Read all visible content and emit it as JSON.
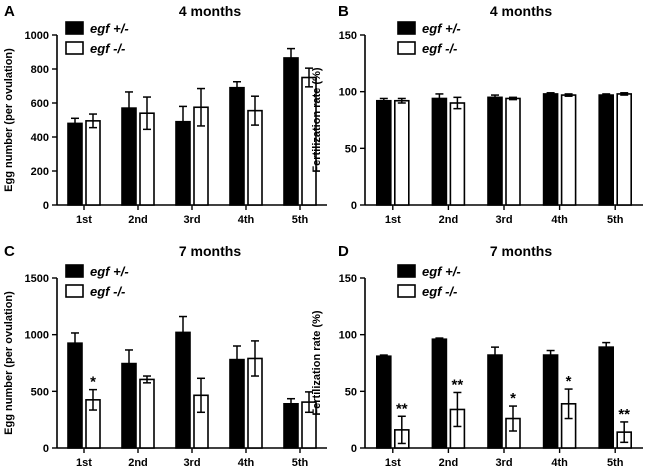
{
  "chart_data": [
    {
      "id": "A",
      "type": "bar",
      "panel_letter": "A",
      "title": "4 months",
      "ylabel": "Egg number (per ovulation)",
      "xlabel": "",
      "categories": [
        "1st",
        "2nd",
        "3rd",
        "4th",
        "5th"
      ],
      "ylim": [
        0,
        1000
      ],
      "yticks": [
        0,
        200,
        400,
        600,
        800,
        1000
      ],
      "series": [
        {
          "name": "egf +/-",
          "color": "#000000",
          "values": [
            480,
            570,
            490,
            690,
            865
          ],
          "errors": [
            30,
            95,
            90,
            35,
            55
          ]
        },
        {
          "name": "egf -/-",
          "color": "#ffffff",
          "values": [
            495,
            540,
            575,
            555,
            750
          ],
          "errors": [
            40,
            95,
            110,
            85,
            55
          ]
        }
      ],
      "significance": [],
      "legend": "top-left",
      "grid": false
    },
    {
      "id": "B",
      "type": "bar",
      "panel_letter": "B",
      "title": "4 months",
      "ylabel": "Fertilization rate (%)",
      "xlabel": "",
      "categories": [
        "1st",
        "2nd",
        "3rd",
        "4th",
        "5th"
      ],
      "ylim": [
        0,
        150
      ],
      "yticks": [
        0,
        50,
        100,
        150
      ],
      "series": [
        {
          "name": "egf +/-",
          "color": "#000000",
          "values": [
            92,
            94,
            95,
            98,
            97
          ],
          "errors": [
            2,
            4,
            2,
            1,
            1
          ]
        },
        {
          "name": "egf -/-",
          "color": "#ffffff",
          "values": [
            92,
            90,
            94,
            97,
            98
          ],
          "errors": [
            2,
            5,
            1,
            1,
            1
          ]
        }
      ],
      "significance": [],
      "legend": "top-left",
      "grid": false
    },
    {
      "id": "C",
      "type": "bar",
      "panel_letter": "C",
      "title": "7 months",
      "ylabel": "Egg number (per ovulation)",
      "xlabel": "",
      "categories": [
        "1st",
        "2nd",
        "3rd",
        "4th",
        "5th"
      ],
      "ylim": [
        0,
        1500
      ],
      "yticks": [
        0,
        500,
        1000,
        1500
      ],
      "series": [
        {
          "name": "egf +/-",
          "color": "#000000",
          "values": [
            925,
            745,
            1020,
            780,
            390
          ],
          "errors": [
            90,
            120,
            140,
            120,
            45
          ]
        },
        {
          "name": "egf -/-",
          "color": "#ffffff",
          "values": [
            425,
            605,
            465,
            790,
            405
          ],
          "errors": [
            90,
            30,
            150,
            155,
            90
          ]
        }
      ],
      "significance": [
        "*",
        "",
        "",
        "",
        ""
      ],
      "legend": "top-left",
      "grid": false
    },
    {
      "id": "D",
      "type": "bar",
      "panel_letter": "D",
      "title": "7 months",
      "ylabel": "Fertilization rate (%)",
      "xlabel": "",
      "categories": [
        "1st",
        "2nd",
        "3rd",
        "4th",
        "5th"
      ],
      "ylim": [
        0,
        150
      ],
      "yticks": [
        0,
        50,
        100,
        150
      ],
      "series": [
        {
          "name": "egf +/-",
          "color": "#000000",
          "values": [
            81,
            96,
            82,
            82,
            89
          ],
          "errors": [
            1,
            1,
            7,
            4,
            4
          ]
        },
        {
          "name": "egf -/-",
          "color": "#ffffff",
          "values": [
            16,
            34,
            26,
            39,
            14
          ],
          "errors": [
            12,
            15,
            11,
            13,
            9
          ]
        }
      ],
      "significance": [
        "**",
        "**",
        "*",
        "*",
        "**"
      ],
      "legend": "top-left",
      "grid": false
    }
  ]
}
